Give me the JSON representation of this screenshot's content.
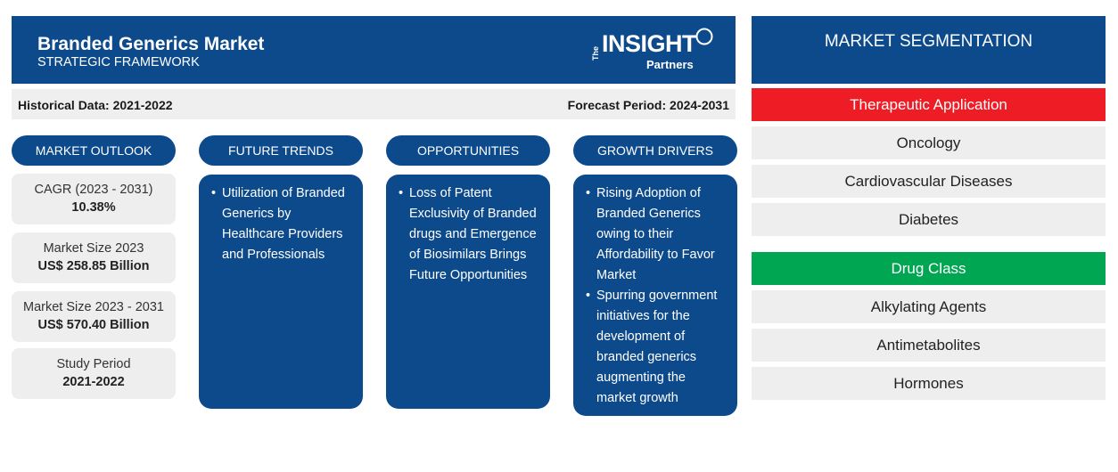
{
  "header": {
    "title": "Branded Generics Market",
    "subtitle": "STRATEGIC FRAMEWORK",
    "logo": {
      "the": "The",
      "insight": "INSIGHT",
      "partners": "Partners"
    }
  },
  "periods": {
    "historical": "Historical Data: 2021-2022",
    "forecast": "Forecast Period: 2024-2031"
  },
  "columns": {
    "market_outlook": "MARKET OUTLOOK",
    "future_trends": "FUTURE TRENDS",
    "opportunities": "OPPORTUNITIES",
    "growth_drivers": "GROWTH DRIVERS"
  },
  "stats": [
    {
      "label": "CAGR (2023 - 2031)",
      "value": "10.38%"
    },
    {
      "label": "Market Size 2023",
      "value": "US$ 258.85 Billion"
    },
    {
      "label": "Market Size 2023 - 2031",
      "value": "US$ 570.40 Billion"
    },
    {
      "label": "Study Period",
      "value": "2021-2022"
    }
  ],
  "future_trends": [
    "Utilization of Branded Generics by Healthcare Providers and Professionals"
  ],
  "opportunities": [
    "Loss of Patent Exclusivity of Branded drugs and Emergence of Biosimilars Brings Future Opportunities"
  ],
  "growth_drivers": [
    "Rising Adoption of Branded Generics owing to their Affordability to Favor Market",
    "Spurring government initiatives for the development of branded generics augmenting the market growth"
  ],
  "segmentation": {
    "title": "MARKET SEGMENTATION",
    "categories": [
      {
        "name": "Therapeutic Application",
        "items": [
          "Oncology",
          "Cardiovascular Diseases",
          "Diabetes"
        ]
      },
      {
        "name": "Drug Class",
        "items": [
          "Alkylating Agents",
          "Antimetabolites",
          "Hormones"
        ]
      }
    ]
  },
  "colors": {
    "navy": "#0d4a8c",
    "red": "#ee1c25",
    "green": "#00a651",
    "light_gray": "#eeeeee"
  }
}
